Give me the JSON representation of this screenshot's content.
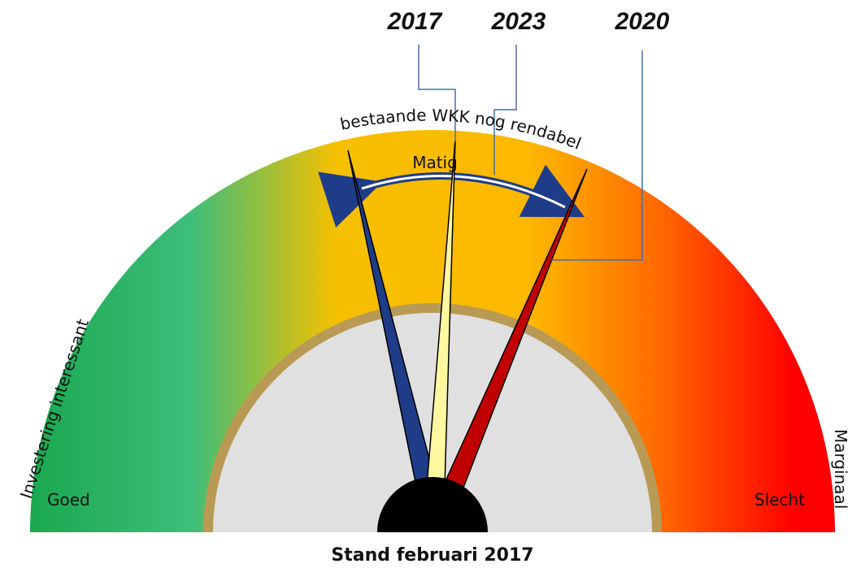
{
  "callouts": [
    "2017",
    "2023",
    "2020"
  ],
  "arc_label": "bestaande WKK nog rendabel",
  "band_label": "Matig",
  "left_label": "Investering interessant",
  "right_label": "Marginaal",
  "low_label": "Goed",
  "high_label": "Slecht",
  "caption": "Stand februari 2017"
}
